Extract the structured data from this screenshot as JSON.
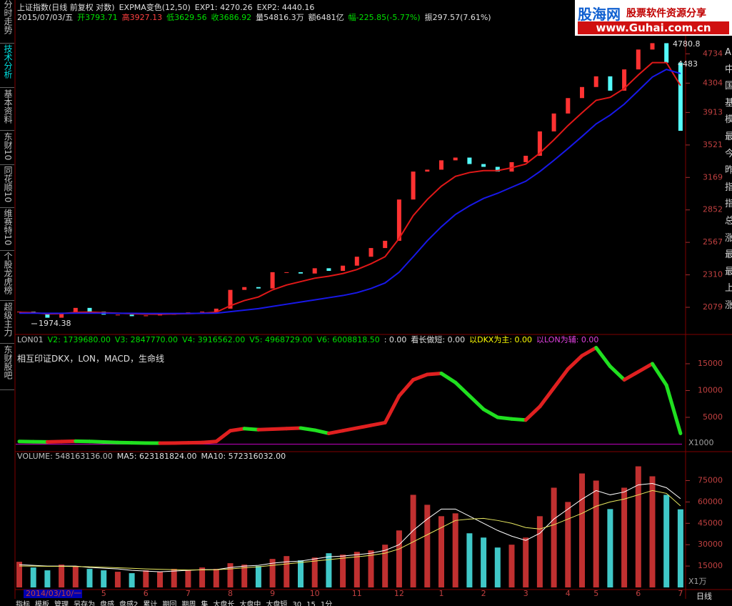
{
  "header": {
    "line1": [
      {
        "text": "上证指数(日线 前复权 对数)",
        "color": "#e0e0e0"
      },
      {
        "text": "EXPMA变色(12,50)",
        "color": "#e0e0e0"
      },
      {
        "text": "EXP1: 4270.26",
        "color": "#e0e0e0"
      },
      {
        "text": "EXP2: 4440.16",
        "color": "#e0e0e0"
      }
    ],
    "line2": [
      {
        "text": "2015/07/03/五",
        "color": "#e0e0e0"
      },
      {
        "text": "开3793.71",
        "color": "#00e000"
      },
      {
        "text": "高3927.13",
        "color": "#ff4040"
      },
      {
        "text": "低3629.56",
        "color": "#00e000"
      },
      {
        "text": "收3686.92",
        "color": "#00e000"
      },
      {
        "text": "量54816.3万",
        "color": "#e0e0e0"
      },
      {
        "text": "额6481亿",
        "color": "#e0e0e0"
      },
      {
        "text": "幅-225.85(-5.77%)",
        "color": "#00e000"
      },
      {
        "text": "振297.57(7.61%)",
        "color": "#e0e0e0"
      }
    ]
  },
  "logo": {
    "name": "股海网",
    "slogan": "股票软件资源分享",
    "url": "www.Guhai.com.cn"
  },
  "sidebar": [
    {
      "text": "分时走势",
      "color": "#c0c0c0"
    },
    {
      "text": "技术分析",
      "color": "#00e0e0"
    },
    {
      "text": "基本资料",
      "color": "#c0c0c0"
    },
    {
      "text": "东财10",
      "color": "#c0c0c0"
    },
    {
      "text": "同花顺10",
      "color": "#c0c0c0"
    },
    {
      "text": "维赛特10",
      "color": "#c0c0c0"
    },
    {
      "text": "个股龙虎榜",
      "color": "#c0c0c0"
    },
    {
      "text": "超级主力",
      "color": "#c0c0c0"
    },
    {
      "text": "东财股吧",
      "color": "#c0c0c0"
    }
  ],
  "right_column": [
    "A",
    "中",
    "国",
    "基",
    "模",
    "最",
    "今",
    "昨",
    "指",
    "指",
    "总",
    "涨",
    "最",
    "最",
    "上",
    "涨"
  ],
  "toolbar": [
    "指标",
    "模板",
    "管理",
    "另存为",
    "盘感",
    "盘感2",
    "累计",
    "期回",
    "期周",
    "集",
    "大盘长",
    "大盘中",
    "大盘短",
    "30",
    "15",
    "1分"
  ],
  "period": "日线",
  "chart_data": [
    {
      "type": "candlestick",
      "log_scale": true,
      "up_color": "#ff3232",
      "down_color": "#54fcfc",
      "categories": [
        "2014/03/10/一",
        null,
        null,
        null,
        null,
        null,
        "5",
        null,
        null,
        "6",
        null,
        null,
        "7",
        null,
        null,
        "8",
        null,
        null,
        "9",
        null,
        null,
        "10",
        null,
        null,
        "11",
        null,
        null,
        "12",
        null,
        null,
        "1",
        null,
        null,
        "2",
        null,
        null,
        "3",
        null,
        null,
        "4",
        null,
        "5",
        null,
        null,
        "6",
        null,
        null,
        "7"
      ],
      "values": [
        2050,
        2040,
        2010,
        2040,
        2075,
        2050,
        2030,
        2030,
        2020,
        2025,
        2030,
        2040,
        2045,
        2050,
        2070,
        2200,
        2220,
        2210,
        2330,
        2330,
        2320,
        2360,
        2340,
        2380,
        2450,
        2520,
        2580,
        2950,
        3230,
        3250,
        3350,
        3380,
        3310,
        3280,
        3230,
        3330,
        3400,
        3680,
        3900,
        4100,
        4250,
        4400,
        4200,
        4500,
        4800,
        4900,
        4600,
        3687
      ],
      "series": [
        {
          "name": "EXP1",
          "color": "#e01818",
          "values": [
            2045,
            2043,
            2035,
            2037,
            2045,
            2047,
            2043,
            2040,
            2036,
            2034,
            2033,
            2035,
            2037,
            2040,
            2046,
            2090,
            2125,
            2150,
            2200,
            2235,
            2260,
            2285,
            2300,
            2320,
            2350,
            2395,
            2450,
            2600,
            2800,
            2950,
            3080,
            3180,
            3220,
            3240,
            3240,
            3270,
            3310,
            3430,
            3580,
            3750,
            3910,
            4070,
            4110,
            4230,
            4420,
            4600,
            4600,
            4270
          ]
        },
        {
          "name": "EXP2",
          "color": "#1818e8",
          "values": [
            2040,
            2040,
            2039,
            2039,
            2040,
            2040,
            2040,
            2039,
            2039,
            2038,
            2038,
            2038,
            2038,
            2039,
            2040,
            2050,
            2060,
            2070,
            2085,
            2100,
            2115,
            2130,
            2145,
            2160,
            2180,
            2210,
            2250,
            2330,
            2450,
            2580,
            2700,
            2810,
            2890,
            2960,
            3010,
            3070,
            3130,
            3230,
            3350,
            3480,
            3620,
            3770,
            3880,
            4020,
            4200,
            4390,
            4500,
            4440
          ]
        }
      ],
      "ylim": [
        1917,
        4962
      ],
      "yticks": [
        2079,
        2310,
        2567,
        2852,
        3169,
        3521,
        3913,
        4304,
        4734
      ],
      "annotations": [
        "1974.38",
        "4780.8",
        "4483"
      ]
    },
    {
      "type": "line",
      "header": [
        {
          "text": "LON01",
          "color": "#c0c0c0"
        },
        {
          "text": "V2: 1739680.00",
          "color": "#00e000"
        },
        {
          "text": "V3: 2847770.00",
          "color": "#00e000"
        },
        {
          "text": "V4: 3916562.00",
          "color": "#00e000"
        },
        {
          "text": "V5: 4968729.00",
          "color": "#00e000"
        },
        {
          "text": "V6: 6008818.50",
          "color": "#00e000"
        },
        {
          "text": ": 0.00",
          "color": "#e0e0e0"
        },
        {
          "text": "看长做短: 0.00",
          "color": "#e0e0e0"
        },
        {
          "text": "以DKX为主: 0.00",
          "color": "#ffff00"
        },
        {
          "text": "以LON为辅: 0.00",
          "color": "#e040e0"
        }
      ],
      "subtitle": "相互印证DKX，LON，MACD，生命线",
      "unit": "X1000",
      "series": [
        {
          "name": "DKX",
          "color_up": "#e02020",
          "color_down": "#20e020",
          "values": [
            500,
            450,
            420,
            480,
            550,
            500,
            400,
            300,
            250,
            200,
            180,
            200,
            250,
            300,
            500,
            2500,
            2900,
            2700,
            2800,
            2900,
            3000,
            2600,
            2000,
            2500,
            3000,
            3500,
            4000,
            9000,
            12000,
            13000,
            13200,
            11500,
            9000,
            6500,
            5000,
            4700,
            4500,
            7000,
            10500,
            14000,
            16500,
            18000,
            14500,
            12000,
            13500,
            15000,
            11000,
            2000
          ]
        }
      ],
      "reference_line": {
        "value": 0,
        "color": "#c000c0"
      },
      "ylim": [
        -870,
        18600
      ],
      "yticks": [
        5000,
        10000,
        15000
      ]
    },
    {
      "type": "bar",
      "header": [
        {
          "text": "VOLUME: 548163136.00",
          "color": "#c0c0c0"
        },
        {
          "text": "MA5: 623181824.00",
          "color": "#e0e0e0"
        },
        {
          "text": "MA10: 572316032.00",
          "color": "#e0e0e0"
        }
      ],
      "unit": "X1万",
      "values": [
        18000,
        14000,
        12000,
        16000,
        15000,
        13000,
        12000,
        11000,
        10000,
        12000,
        11000,
        13000,
        12000,
        14000,
        13000,
        17000,
        16000,
        15000,
        20000,
        22000,
        19000,
        21000,
        24000,
        23000,
        25000,
        26000,
        30000,
        40000,
        65000,
        58000,
        50000,
        52000,
        38000,
        35000,
        28000,
        30000,
        35000,
        50000,
        70000,
        60000,
        80000,
        75000,
        55000,
        70000,
        85000,
        78000,
        65000,
        54816
      ],
      "series": [
        {
          "name": "MA5",
          "color": "#ffffff",
          "values": [
            16000,
            15500,
            15000,
            15000,
            15000,
            14000,
            13500,
            13000,
            12000,
            11500,
            11000,
            11500,
            12000,
            12500,
            12500,
            14000,
            15000,
            15500,
            17000,
            18000,
            18500,
            20000,
            21500,
            22000,
            23000,
            24000,
            26000,
            30000,
            40000,
            48000,
            55000,
            55000,
            50000,
            45000,
            40000,
            36000,
            33000,
            38000,
            48000,
            55000,
            62000,
            68000,
            65000,
            67000,
            72000,
            73000,
            70000,
            62318
          ]
        },
        {
          "name": "MA10",
          "color": "#e8e860",
          "values": [
            15000,
            15000,
            14800,
            14800,
            14700,
            14500,
            14200,
            13800,
            13400,
            13000,
            12700,
            12500,
            12200,
            12300,
            12400,
            13000,
            13800,
            14500,
            15500,
            16500,
            17500,
            18500,
            19500,
            20500,
            21500,
            22500,
            24000,
            27000,
            32000,
            37000,
            42000,
            47000,
            48000,
            48500,
            47000,
            45000,
            42000,
            41000,
            44000,
            48000,
            52000,
            57000,
            60000,
            62000,
            65000,
            68000,
            66000,
            57232
          ]
        }
      ],
      "ylim": [
        0,
        91300
      ],
      "yticks": [
        15000,
        30000,
        45000,
        60000,
        75000
      ]
    }
  ]
}
